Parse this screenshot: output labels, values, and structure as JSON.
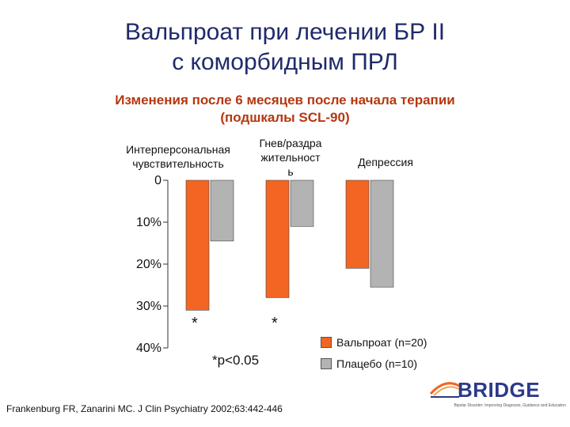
{
  "title": {
    "line1": "Вальпроат при лечении БР II",
    "line2": "с коморбидным ПРЛ"
  },
  "subtitle": {
    "line1": "Изменения после 6 месяцев после начала терапии",
    "line2": "(подшкалы SCL-90)"
  },
  "chart_data": {
    "type": "bar",
    "orientation": "vertical-downward",
    "categories": [
      [
        "Интерперсональная",
        "чувствительность"
      ],
      [
        "Гнев/раздра",
        "жительност",
        "ь"
      ],
      [
        "Депрессия"
      ]
    ],
    "series": [
      {
        "name": "Вальпроат (n=20)",
        "color": "#f26522",
        "values": [
          -31,
          -28,
          -21
        ]
      },
      {
        "name": "Плацебо (n=10)",
        "color": "#b3b3b3",
        "values": [
          -14.5,
          -11,
          -25.5
        ]
      }
    ],
    "y_ticks": [
      "0",
      "10%",
      "20%",
      "30%",
      "40%"
    ],
    "y_tick_values": [
      0,
      -10,
      -20,
      -30,
      -40
    ],
    "ylim": [
      -40,
      0
    ],
    "significance_markers": [
      "*",
      "*"
    ],
    "legend_position": "bottom-right",
    "grid": false
  },
  "annotation": "*p<0.05",
  "citation": "Frankenburg FR, Zanarini MC. J Clin Psychiatry 2002;63:442-446",
  "logo": {
    "text": "BRIDGE",
    "tagline": "Bipolar Disorder: Improving Diagnosis, Guidance and Education",
    "icon": "bridge-arc-icon"
  }
}
